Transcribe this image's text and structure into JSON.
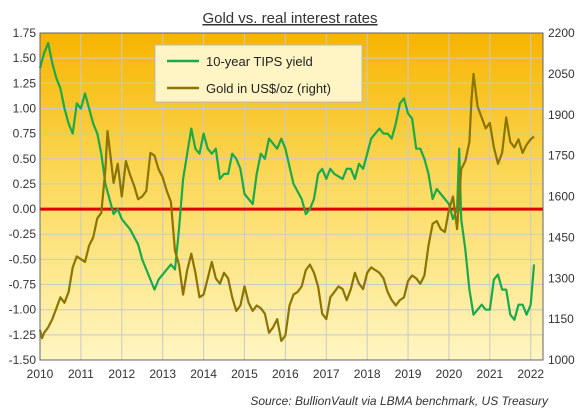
{
  "chart_data": {
    "type": "line",
    "title": "Gold vs. real interest rates",
    "source": "Source: BullionVault via LBMA benchmark, US Treasury",
    "x_ticks": [
      "2010",
      "2011",
      "2012",
      "2013",
      "2014",
      "2015",
      "2016",
      "2017",
      "2018",
      "2019",
      "2020",
      "2021",
      "2022"
    ],
    "xlim": [
      2010.0,
      2022.3
    ],
    "y_left": {
      "ylim": [
        -1.5,
        1.75
      ],
      "ticks": [
        "1.75",
        "1.50",
        "1.25",
        "1.00",
        "0.75",
        "0.50",
        "0.25",
        "0.00",
        "-0.25",
        "-0.50",
        "-0.75",
        "-1.00",
        "-1.25",
        "-1.50"
      ]
    },
    "y_right": {
      "ylim": [
        1000,
        2200
      ],
      "ticks": [
        "2200",
        "2050",
        "1900",
        "1750",
        "1600",
        "1450",
        "1300",
        "1150",
        "1000"
      ]
    },
    "zero_line": {
      "y": 0.0,
      "color": "#e00000"
    },
    "grid": true,
    "legend_position": "top-center",
    "series": [
      {
        "name": "10-year TIPS yield",
        "axis": "left",
        "color": "#1aaa4a",
        "points": [
          [
            2010.0,
            1.4
          ],
          [
            2010.1,
            1.55
          ],
          [
            2010.2,
            1.65
          ],
          [
            2010.3,
            1.45
          ],
          [
            2010.4,
            1.3
          ],
          [
            2010.5,
            1.2
          ],
          [
            2010.6,
            1.0
          ],
          [
            2010.7,
            0.85
          ],
          [
            2010.8,
            0.75
          ],
          [
            2010.9,
            1.05
          ],
          [
            2011.0,
            1.0
          ],
          [
            2011.1,
            1.15
          ],
          [
            2011.2,
            1.0
          ],
          [
            2011.3,
            0.85
          ],
          [
            2011.4,
            0.75
          ],
          [
            2011.5,
            0.55
          ],
          [
            2011.6,
            0.25
          ],
          [
            2011.7,
            0.1
          ],
          [
            2011.8,
            -0.05
          ],
          [
            2011.9,
            0.0
          ],
          [
            2012.0,
            -0.1
          ],
          [
            2012.2,
            -0.2
          ],
          [
            2012.4,
            -0.35
          ],
          [
            2012.5,
            -0.5
          ],
          [
            2012.7,
            -0.7
          ],
          [
            2012.8,
            -0.8
          ],
          [
            2012.9,
            -0.7
          ],
          [
            2013.0,
            -0.65
          ],
          [
            2013.2,
            -0.55
          ],
          [
            2013.3,
            -0.6
          ],
          [
            2013.4,
            -0.2
          ],
          [
            2013.5,
            0.3
          ],
          [
            2013.6,
            0.55
          ],
          [
            2013.7,
            0.8
          ],
          [
            2013.8,
            0.6
          ],
          [
            2013.9,
            0.55
          ],
          [
            2014.0,
            0.75
          ],
          [
            2014.1,
            0.6
          ],
          [
            2014.2,
            0.55
          ],
          [
            2014.3,
            0.6
          ],
          [
            2014.4,
            0.3
          ],
          [
            2014.5,
            0.35
          ],
          [
            2014.6,
            0.35
          ],
          [
            2014.7,
            0.55
          ],
          [
            2014.8,
            0.5
          ],
          [
            2014.9,
            0.4
          ],
          [
            2015.0,
            0.15
          ],
          [
            2015.1,
            0.1
          ],
          [
            2015.2,
            0.05
          ],
          [
            2015.3,
            0.35
          ],
          [
            2015.4,
            0.55
          ],
          [
            2015.5,
            0.5
          ],
          [
            2015.6,
            0.7
          ],
          [
            2015.7,
            0.65
          ],
          [
            2015.8,
            0.6
          ],
          [
            2015.9,
            0.7
          ],
          [
            2016.0,
            0.6
          ],
          [
            2016.2,
            0.25
          ],
          [
            2016.4,
            0.1
          ],
          [
            2016.5,
            -0.05
          ],
          [
            2016.6,
            0.0
          ],
          [
            2016.7,
            0.1
          ],
          [
            2016.8,
            0.35
          ],
          [
            2016.9,
            0.4
          ],
          [
            2017.0,
            0.3
          ],
          [
            2017.1,
            0.4
          ],
          [
            2017.2,
            0.35
          ],
          [
            2017.4,
            0.3
          ],
          [
            2017.5,
            0.4
          ],
          [
            2017.6,
            0.4
          ],
          [
            2017.7,
            0.3
          ],
          [
            2017.8,
            0.45
          ],
          [
            2017.9,
            0.4
          ],
          [
            2018.0,
            0.55
          ],
          [
            2018.1,
            0.7
          ],
          [
            2018.2,
            0.75
          ],
          [
            2018.3,
            0.8
          ],
          [
            2018.4,
            0.75
          ],
          [
            2018.5,
            0.75
          ],
          [
            2018.6,
            0.7
          ],
          [
            2018.7,
            0.85
          ],
          [
            2018.8,
            1.05
          ],
          [
            2018.9,
            1.1
          ],
          [
            2019.0,
            0.95
          ],
          [
            2019.1,
            0.9
          ],
          [
            2019.2,
            0.6
          ],
          [
            2019.3,
            0.6
          ],
          [
            2019.4,
            0.5
          ],
          [
            2019.5,
            0.35
          ],
          [
            2019.6,
            0.1
          ],
          [
            2019.7,
            0.2
          ],
          [
            2019.8,
            0.15
          ],
          [
            2019.9,
            0.1
          ],
          [
            2020.0,
            0.05
          ],
          [
            2020.1,
            -0.1
          ],
          [
            2020.2,
            0.0
          ],
          [
            2020.25,
            0.6
          ],
          [
            2020.3,
            -0.1
          ],
          [
            2020.4,
            -0.4
          ],
          [
            2020.5,
            -0.8
          ],
          [
            2020.6,
            -1.05
          ],
          [
            2020.7,
            -1.0
          ],
          [
            2020.8,
            -0.95
          ],
          [
            2020.9,
            -1.0
          ],
          [
            2021.0,
            -1.0
          ],
          [
            2021.1,
            -0.7
          ],
          [
            2021.2,
            -0.65
          ],
          [
            2021.3,
            -0.8
          ],
          [
            2021.4,
            -0.8
          ],
          [
            2021.5,
            -1.05
          ],
          [
            2021.6,
            -1.1
          ],
          [
            2021.7,
            -0.95
          ],
          [
            2021.8,
            -0.95
          ],
          [
            2021.9,
            -1.05
          ],
          [
            2022.0,
            -0.95
          ],
          [
            2022.05,
            -0.7
          ],
          [
            2022.08,
            -0.55
          ]
        ]
      },
      {
        "name": "Gold in US$/oz (right)",
        "axis": "right",
        "color": "#8b7400",
        "points": [
          [
            2010.0,
            1110
          ],
          [
            2010.05,
            1080
          ],
          [
            2010.1,
            1100
          ],
          [
            2010.2,
            1120
          ],
          [
            2010.3,
            1150
          ],
          [
            2010.4,
            1190
          ],
          [
            2010.5,
            1230
          ],
          [
            2010.6,
            1210
          ],
          [
            2010.7,
            1250
          ],
          [
            2010.8,
            1340
          ],
          [
            2010.9,
            1380
          ],
          [
            2011.0,
            1370
          ],
          [
            2011.1,
            1360
          ],
          [
            2011.2,
            1420
          ],
          [
            2011.3,
            1450
          ],
          [
            2011.4,
            1520
          ],
          [
            2011.5,
            1540
          ],
          [
            2011.6,
            1700
          ],
          [
            2011.65,
            1840
          ],
          [
            2011.7,
            1780
          ],
          [
            2011.8,
            1650
          ],
          [
            2011.9,
            1720
          ],
          [
            2012.0,
            1600
          ],
          [
            2012.1,
            1730
          ],
          [
            2012.2,
            1680
          ],
          [
            2012.3,
            1640
          ],
          [
            2012.4,
            1590
          ],
          [
            2012.5,
            1600
          ],
          [
            2012.6,
            1620
          ],
          [
            2012.7,
            1760
          ],
          [
            2012.8,
            1750
          ],
          [
            2012.9,
            1700
          ],
          [
            2013.0,
            1670
          ],
          [
            2013.1,
            1620
          ],
          [
            2013.2,
            1580
          ],
          [
            2013.3,
            1400
          ],
          [
            2013.4,
            1350
          ],
          [
            2013.5,
            1240
          ],
          [
            2013.6,
            1330
          ],
          [
            2013.7,
            1390
          ],
          [
            2013.8,
            1320
          ],
          [
            2013.9,
            1230
          ],
          [
            2014.0,
            1240
          ],
          [
            2014.1,
            1300
          ],
          [
            2014.2,
            1360
          ],
          [
            2014.3,
            1300
          ],
          [
            2014.4,
            1280
          ],
          [
            2014.5,
            1320
          ],
          [
            2014.6,
            1300
          ],
          [
            2014.7,
            1230
          ],
          [
            2014.8,
            1180
          ],
          [
            2014.9,
            1200
          ],
          [
            2015.0,
            1270
          ],
          [
            2015.1,
            1210
          ],
          [
            2015.2,
            1180
          ],
          [
            2015.3,
            1200
          ],
          [
            2015.4,
            1190
          ],
          [
            2015.5,
            1170
          ],
          [
            2015.6,
            1100
          ],
          [
            2015.7,
            1120
          ],
          [
            2015.8,
            1150
          ],
          [
            2015.9,
            1070
          ],
          [
            2016.0,
            1090
          ],
          [
            2016.1,
            1200
          ],
          [
            2016.2,
            1240
          ],
          [
            2016.3,
            1250
          ],
          [
            2016.4,
            1270
          ],
          [
            2016.5,
            1330
          ],
          [
            2016.6,
            1350
          ],
          [
            2016.7,
            1320
          ],
          [
            2016.8,
            1270
          ],
          [
            2016.9,
            1170
          ],
          [
            2017.0,
            1150
          ],
          [
            2017.1,
            1230
          ],
          [
            2017.2,
            1250
          ],
          [
            2017.3,
            1270
          ],
          [
            2017.4,
            1260
          ],
          [
            2017.5,
            1220
          ],
          [
            2017.6,
            1260
          ],
          [
            2017.7,
            1320
          ],
          [
            2017.8,
            1280
          ],
          [
            2017.9,
            1260
          ],
          [
            2018.0,
            1320
          ],
          [
            2018.1,
            1340
          ],
          [
            2018.2,
            1330
          ],
          [
            2018.3,
            1320
          ],
          [
            2018.4,
            1300
          ],
          [
            2018.5,
            1250
          ],
          [
            2018.6,
            1220
          ],
          [
            2018.7,
            1200
          ],
          [
            2018.8,
            1220
          ],
          [
            2018.9,
            1230
          ],
          [
            2019.0,
            1290
          ],
          [
            2019.1,
            1310
          ],
          [
            2019.2,
            1300
          ],
          [
            2019.3,
            1280
          ],
          [
            2019.4,
            1310
          ],
          [
            2019.5,
            1420
          ],
          [
            2019.6,
            1500
          ],
          [
            2019.7,
            1510
          ],
          [
            2019.8,
            1480
          ],
          [
            2019.9,
            1470
          ],
          [
            2020.0,
            1550
          ],
          [
            2020.1,
            1600
          ],
          [
            2020.2,
            1480
          ],
          [
            2020.3,
            1700
          ],
          [
            2020.4,
            1730
          ],
          [
            2020.5,
            1800
          ],
          [
            2020.55,
            1950
          ],
          [
            2020.6,
            2050
          ],
          [
            2020.7,
            1930
          ],
          [
            2020.8,
            1890
          ],
          [
            2020.9,
            1850
          ],
          [
            2021.0,
            1870
          ],
          [
            2021.1,
            1780
          ],
          [
            2021.2,
            1720
          ],
          [
            2021.3,
            1760
          ],
          [
            2021.4,
            1890
          ],
          [
            2021.5,
            1800
          ],
          [
            2021.6,
            1780
          ],
          [
            2021.7,
            1810
          ],
          [
            2021.8,
            1760
          ],
          [
            2021.9,
            1790
          ],
          [
            2022.0,
            1810
          ],
          [
            2022.08,
            1820
          ]
        ]
      }
    ]
  }
}
